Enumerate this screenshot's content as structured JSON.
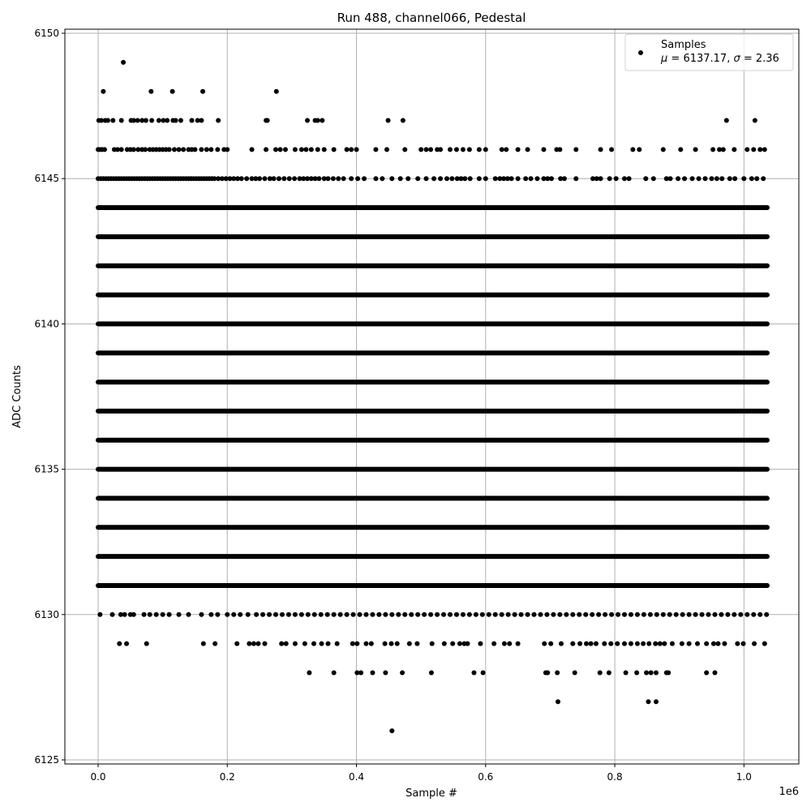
{
  "chart_data": {
    "type": "scatter",
    "title": "Run 488, channel066, Pedestal",
    "xlabel": "Sample #",
    "ylabel": "ADC Counts",
    "x_offset_label": "1e6",
    "xlim": [
      -0.0515,
      1.085
    ],
    "ylim": [
      6124.86,
      6150.14
    ],
    "x_ticks": [
      0.0,
      0.2,
      0.4,
      0.6,
      0.8,
      1.0
    ],
    "x_tick_labels": [
      "0.0",
      "0.2",
      "0.4",
      "0.6",
      "0.8",
      "1.0"
    ],
    "y_ticks": [
      6125,
      6130,
      6135,
      6140,
      6145,
      6150
    ],
    "y_tick_labels": [
      "6125",
      "6130",
      "6135",
      "6140",
      "6145",
      "6150"
    ],
    "grid": true,
    "marker_color": "#000000",
    "legend": {
      "placement": "top-right",
      "label": "Samples",
      "stats_mu_symbol": "μ",
      "stats_mu_text": " = 6137.17, ",
      "stats_sigma_symbol": "σ",
      "stats_sigma_text": " = 2.36"
    },
    "dense_levels": {
      "y": [
        6131,
        6132,
        6133,
        6134,
        6135,
        6136,
        6137,
        6138,
        6139,
        6140,
        6141,
        6142,
        6143,
        6144
      ],
      "x_range": [
        0.0,
        1.036
      ]
    },
    "sparse_levels": [
      {
        "y": 6149,
        "x": [
          0.039
        ]
      },
      {
        "y": 6148,
        "x": [
          0.008,
          0.082,
          0.115,
          0.162,
          0.276
        ]
      },
      {
        "y": 6147,
        "x": [
          0.001,
          0.005,
          0.011,
          0.015,
          0.023,
          0.036,
          0.051,
          0.055,
          0.061,
          0.068,
          0.074,
          0.083,
          0.094,
          0.101,
          0.107,
          0.116,
          0.12,
          0.128,
          0.145,
          0.154,
          0.16,
          0.186,
          0.26,
          0.262,
          0.324,
          0.336,
          0.34,
          0.347,
          0.449,
          0.472,
          0.973,
          1.017
        ]
      },
      {
        "y": 6146,
        "x": [
          0.0,
          0.003,
          0.006,
          0.01,
          0.025,
          0.03,
          0.036,
          0.045,
          0.05,
          0.055,
          0.062,
          0.068,
          0.073,
          0.08,
          0.085,
          0.09,
          0.095,
          0.1,
          0.105,
          0.11,
          0.118,
          0.125,
          0.132,
          0.14,
          0.145,
          0.15,
          0.16,
          0.168,
          0.175,
          0.185,
          0.195,
          0.2,
          0.238,
          0.26,
          0.275,
          0.282,
          0.29,
          0.305,
          0.315,
          0.322,
          0.33,
          0.34,
          0.35,
          0.365,
          0.385,
          0.392,
          0.4,
          0.43,
          0.447,
          0.475,
          0.5,
          0.508,
          0.515,
          0.525,
          0.53,
          0.545,
          0.555,
          0.565,
          0.575,
          0.59,
          0.6,
          0.625,
          0.632,
          0.65,
          0.665,
          0.69,
          0.71,
          0.715,
          0.74,
          0.778,
          0.795,
          0.828,
          0.838,
          0.875,
          0.902,
          0.925,
          0.952,
          0.962,
          0.968,
          0.985,
          1.005,
          1.015,
          1.025,
          1.032
        ]
      },
      {
        "y": 6145,
        "x": [
          0.0,
          0.004,
          0.008,
          0.012,
          0.016,
          0.02,
          0.024,
          0.028,
          0.032,
          0.036,
          0.04,
          0.044,
          0.048,
          0.052,
          0.056,
          0.06,
          0.064,
          0.068,
          0.072,
          0.076,
          0.08,
          0.084,
          0.088,
          0.092,
          0.096,
          0.1,
          0.104,
          0.108,
          0.112,
          0.116,
          0.12,
          0.124,
          0.128,
          0.132,
          0.136,
          0.14,
          0.144,
          0.148,
          0.152,
          0.156,
          0.16,
          0.164,
          0.168,
          0.172,
          0.176,
          0.18,
          0.186,
          0.192,
          0.198,
          0.204,
          0.21,
          0.216,
          0.222,
          0.23,
          0.238,
          0.244,
          0.25,
          0.258,
          0.266,
          0.272,
          0.28,
          0.288,
          0.296,
          0.304,
          0.312,
          0.318,
          0.324,
          0.33,
          0.336,
          0.342,
          0.35,
          0.356,
          0.364,
          0.372,
          0.38,
          0.392,
          0.402,
          0.412,
          0.43,
          0.44,
          0.455,
          0.468,
          0.48,
          0.495,
          0.508,
          0.52,
          0.53,
          0.54,
          0.548,
          0.556,
          0.562,
          0.568,
          0.576,
          0.59,
          0.6,
          0.615,
          0.622,
          0.628,
          0.634,
          0.64,
          0.65,
          0.662,
          0.67,
          0.68,
          0.69,
          0.696,
          0.702,
          0.716,
          0.722,
          0.74,
          0.766,
          0.772,
          0.778,
          0.792,
          0.802,
          0.815,
          0.822,
          0.848,
          0.86,
          0.88,
          0.886,
          0.898,
          0.908,
          0.92,
          0.93,
          0.94,
          0.95,
          0.958,
          0.966,
          0.978,
          0.986,
          1.0,
          1.012,
          1.02,
          1.03
        ]
      },
      {
        "y": 6130,
        "x": [
          0.003,
          0.022,
          0.035,
          0.041,
          0.05,
          0.055,
          0.071,
          0.08,
          0.09,
          0.1,
          0.11,
          0.125,
          0.14,
          0.16,
          0.175,
          0.185,
          0.2,
          0.21,
          0.22,
          0.232,
          0.245,
          0.255,
          0.265,
          0.275,
          0.285,
          0.295,
          0.305,
          0.315,
          0.325,
          0.335,
          0.345,
          0.355,
          0.365,
          0.375,
          0.385,
          0.395,
          0.405,
          0.415,
          0.425,
          0.435,
          0.445,
          0.455,
          0.465,
          0.475,
          0.485,
          0.495,
          0.505,
          0.515,
          0.525,
          0.535,
          0.545,
          0.555,
          0.565,
          0.575,
          0.585,
          0.595,
          0.605,
          0.615,
          0.625,
          0.635,
          0.645,
          0.655,
          0.665,
          0.675,
          0.685,
          0.695,
          0.705,
          0.715,
          0.725,
          0.735,
          0.745,
          0.755,
          0.765,
          0.775,
          0.785,
          0.795,
          0.805,
          0.815,
          0.825,
          0.835,
          0.845,
          0.855,
          0.865,
          0.875,
          0.885,
          0.895,
          0.905,
          0.915,
          0.925,
          0.935,
          0.945,
          0.955,
          0.965,
          0.975,
          0.985,
          0.995,
          1.005,
          1.015,
          1.025,
          1.035
        ]
      },
      {
        "y": 6129,
        "x": [
          0.033,
          0.044,
          0.075,
          0.163,
          0.181,
          0.215,
          0.234,
          0.241,
          0.248,
          0.258,
          0.284,
          0.291,
          0.305,
          0.32,
          0.334,
          0.346,
          0.356,
          0.37,
          0.394,
          0.401,
          0.415,
          0.423,
          0.444,
          0.454,
          0.463,
          0.482,
          0.494,
          0.517,
          0.536,
          0.549,
          0.56,
          0.567,
          0.572,
          0.592,
          0.613,
          0.629,
          0.637,
          0.65,
          0.691,
          0.701,
          0.717,
          0.735,
          0.746,
          0.756,
          0.763,
          0.771,
          0.784,
          0.794,
          0.804,
          0.815,
          0.825,
          0.835,
          0.844,
          0.853,
          0.863,
          0.87,
          0.877,
          0.889,
          0.904,
          0.915,
          0.928,
          0.942,
          0.953,
          0.96,
          0.97,
          0.99,
          0.999,
          1.016,
          1.032
        ]
      },
      {
        "y": 6128,
        "x": [
          0.327,
          0.365,
          0.401,
          0.407,
          0.425,
          0.445,
          0.471,
          0.516,
          0.582,
          0.596,
          0.693,
          0.696,
          0.711,
          0.738,
          0.777,
          0.791,
          0.817,
          0.834,
          0.849,
          0.856,
          0.864,
          0.88,
          0.883,
          0.942,
          0.955
        ]
      },
      {
        "y": 6127,
        "x": [
          0.712,
          0.852,
          0.864
        ]
      },
      {
        "y": 6126,
        "x": [
          0.455
        ]
      }
    ]
  }
}
